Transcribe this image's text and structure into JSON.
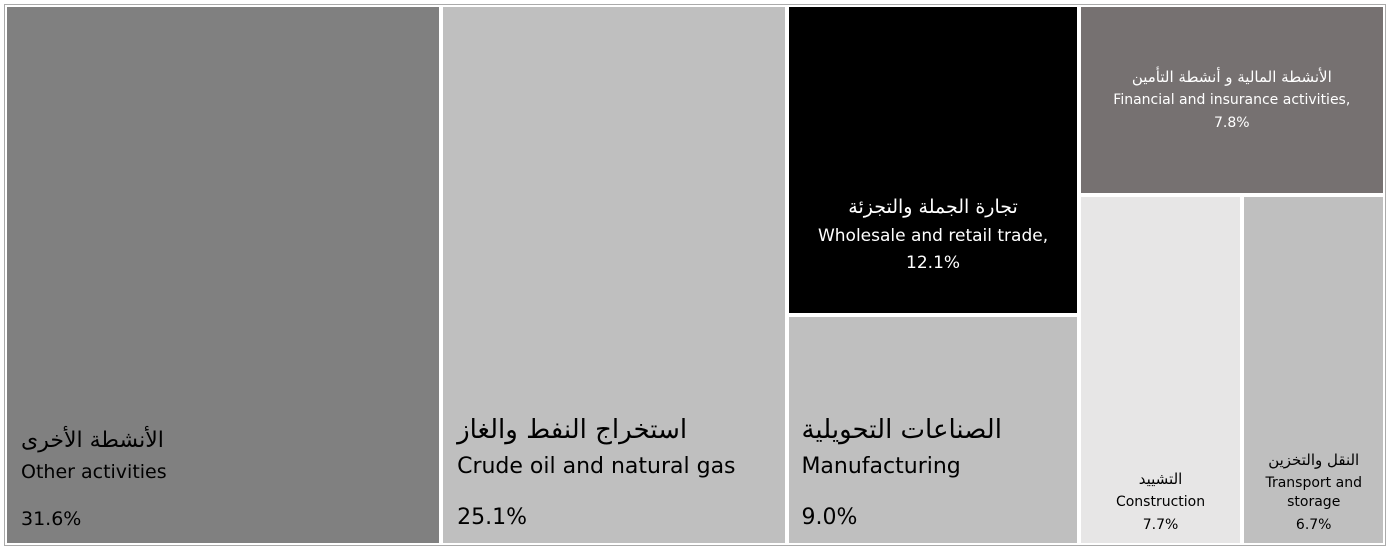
{
  "chart_data": {
    "type": "treemap",
    "categories": [
      "Other activities",
      "Crude oil and natural gas",
      "Wholesale and retail trade,",
      "Manufacturing",
      "Financial and insurance activities,",
      "Construction",
      "Transport and storage"
    ],
    "categories_ar": [
      "الأنشطة الأخرى",
      "استخراج النفط والغاز",
      "تجارة الجملة والتجزئة",
      "الصناعات التحويلية",
      "الأنشطة المالية و أنشطة التأمين",
      "التشييد",
      "النقل والتخزين"
    ],
    "values": [
      31.6,
      25.1,
      12.1,
      9.0,
      7.8,
      7.7,
      6.7
    ],
    "value_labels": [
      "31.6%",
      "25.1%",
      "12.1%",
      "9.0%",
      "7.8%",
      "7.7%",
      "6.7%"
    ],
    "colors": [
      "#808080",
      "#bfbfbf",
      "#000000",
      "#bfbfbf",
      "#767171",
      "#e7e6e6",
      "#bfbfbf"
    ]
  }
}
